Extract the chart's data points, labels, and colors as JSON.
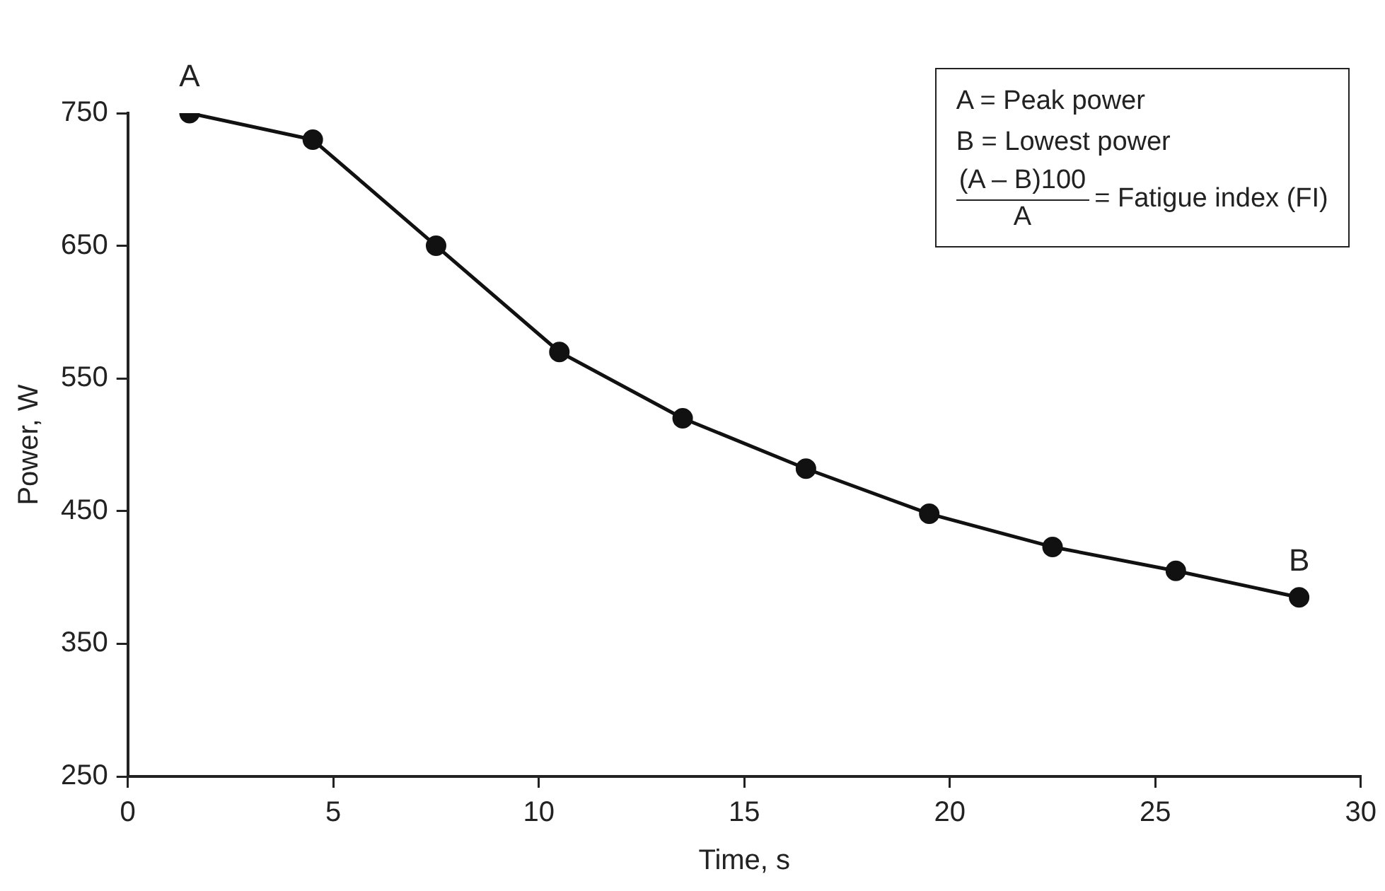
{
  "chart_data": {
    "type": "line",
    "xlabel": "Time, s",
    "ylabel": "Power, W",
    "x": [
      1.5,
      4.5,
      7.5,
      10.5,
      13.5,
      16.5,
      19.5,
      22.5,
      25.5,
      28.5
    ],
    "series": [
      {
        "color": "#111111",
        "values": [
          750,
          730,
          650,
          570,
          520,
          482,
          448,
          423,
          405,
          385
        ]
      }
    ],
    "xlim": [
      0,
      30
    ],
    "xticks": [
      0,
      5,
      10,
      15,
      20,
      25,
      30
    ],
    "ylim": [
      250,
      750
    ],
    "yticks": [
      250,
      350,
      450,
      550,
      650,
      750
    ],
    "grid": false,
    "legend": false,
    "marker": "circle",
    "line_style": "solid",
    "annotations": [
      {
        "text": "A",
        "x": 1.5,
        "y": 750
      },
      {
        "text": "B",
        "x": 28.5,
        "y": 385
      },
      "A = Peak power",
      "B = Lowest power",
      "(A – B)100",
      "A",
      "= Fatigue index (FI)"
    ]
  }
}
